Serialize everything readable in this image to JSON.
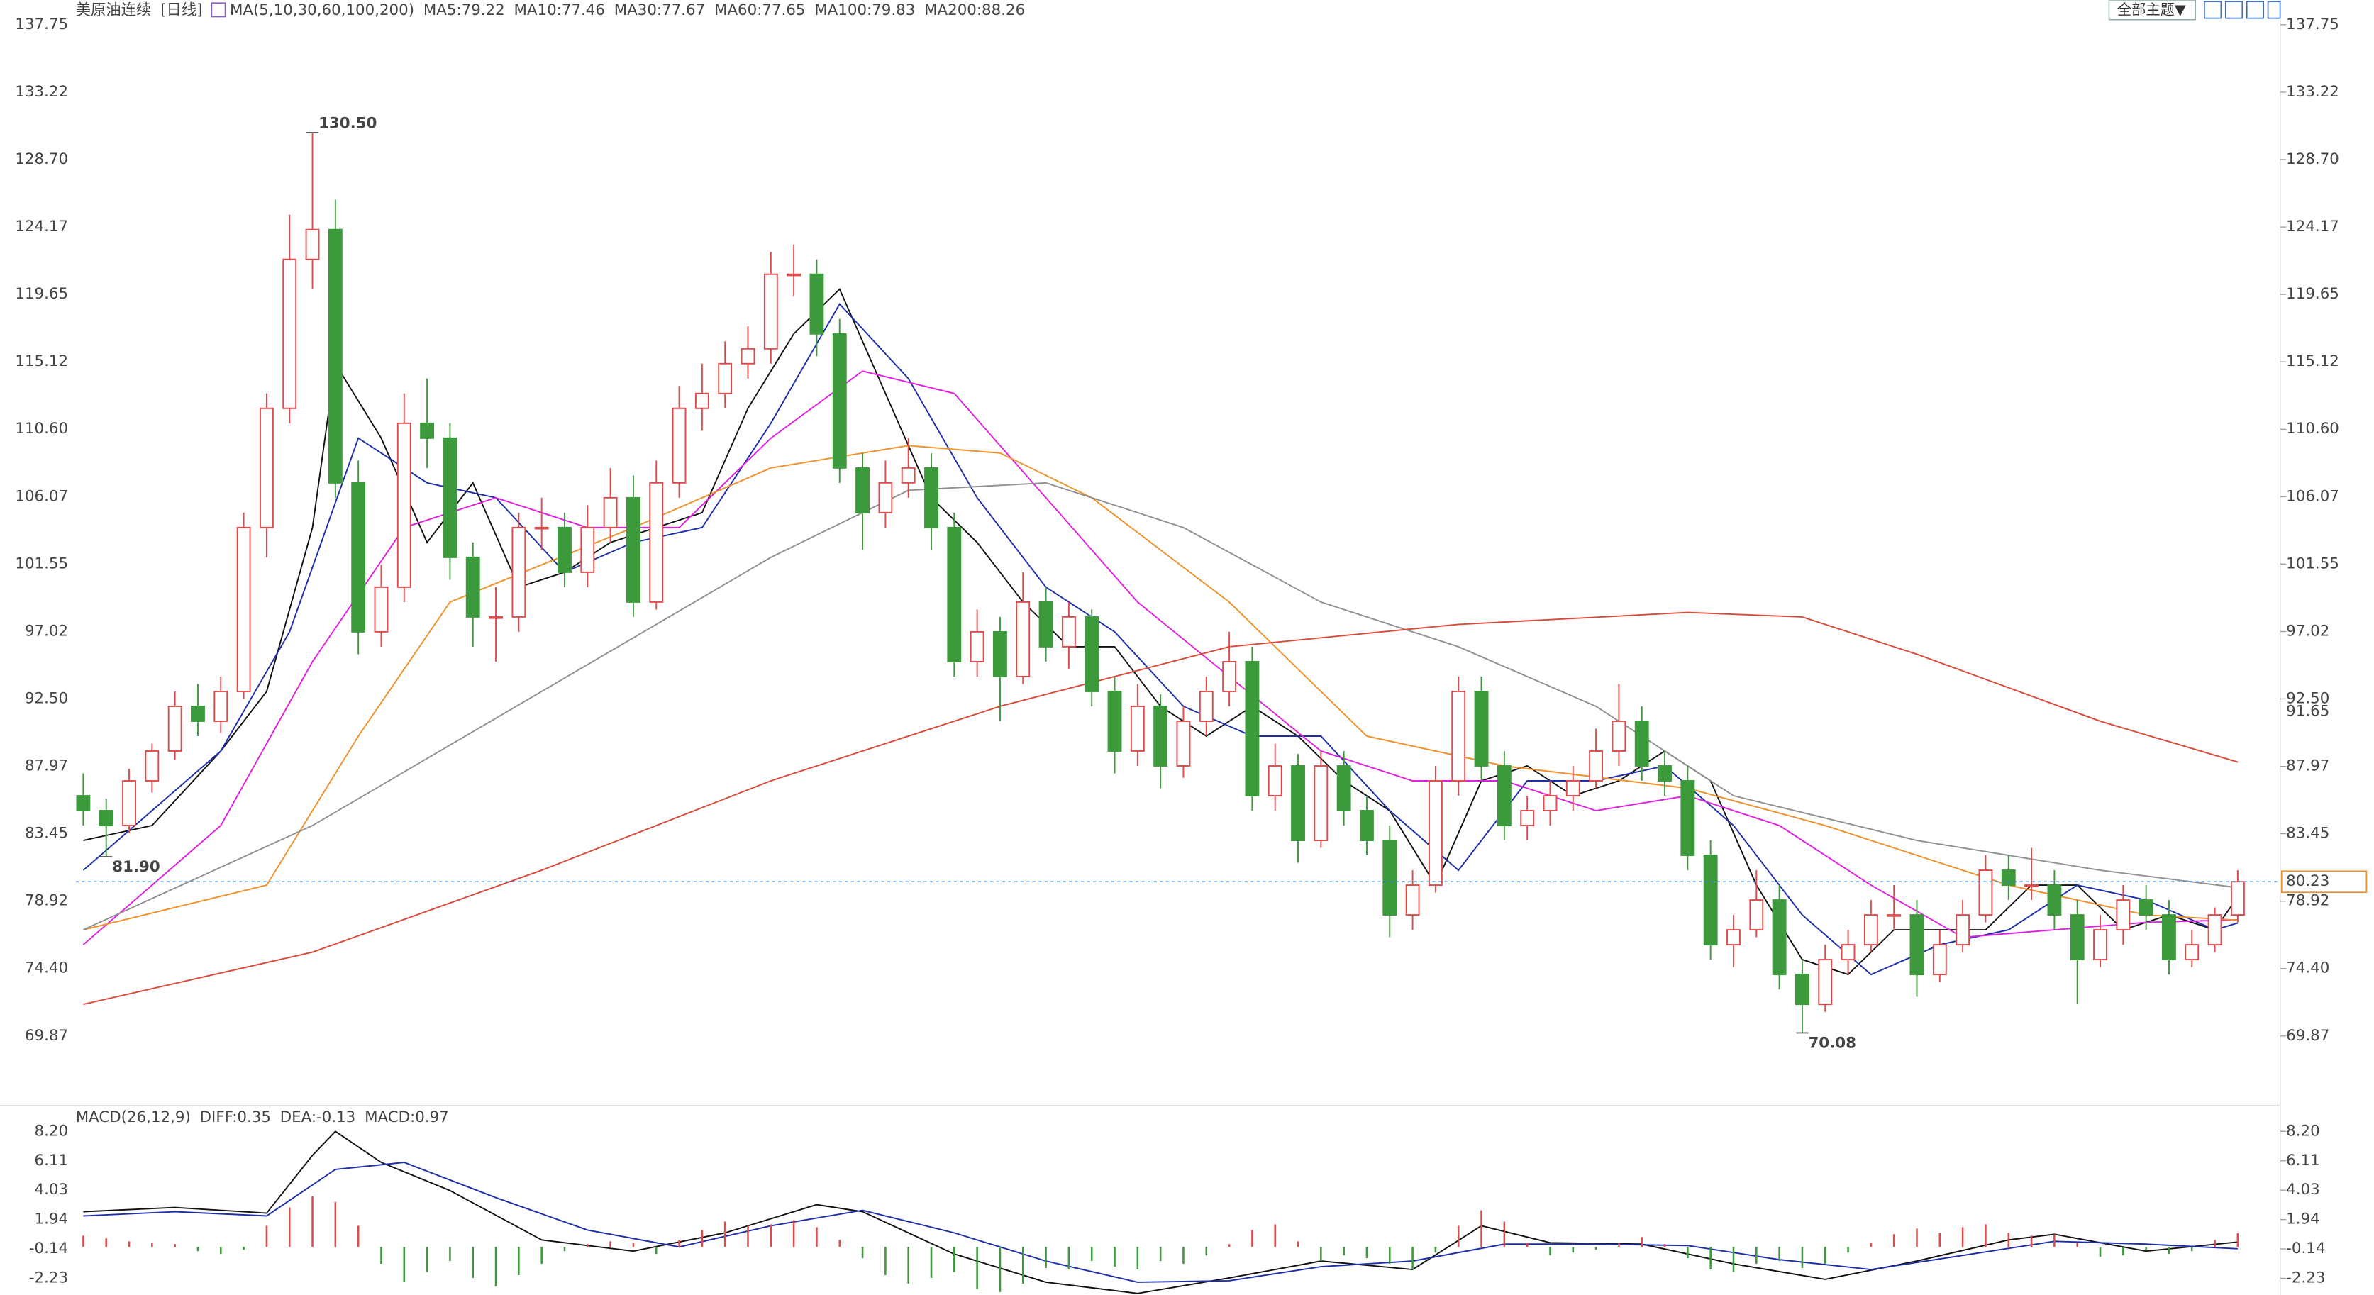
{
  "chart_data": [
    {
      "type": "candlestick",
      "title": "美原油连续",
      "period": "[日线]",
      "indicator": "MA(5,10,30,60,100,200)",
      "up_color": "#e04b4b",
      "down_color": "#3c9a3c",
      "open": [
        86,
        85,
        84,
        87,
        89,
        92,
        91,
        93,
        104,
        112,
        122,
        124,
        107,
        97,
        100,
        111,
        110,
        102,
        98,
        98,
        104,
        104,
        101,
        104,
        106,
        99,
        107,
        112,
        113,
        115,
        116,
        121,
        121,
        117,
        108,
        105,
        107,
        108,
        104,
        95,
        97,
        94,
        99,
        96,
        98,
        93,
        89,
        92,
        88,
        91,
        93,
        95,
        86,
        88,
        83,
        88,
        85,
        83,
        78,
        80,
        87,
        93,
        88,
        84,
        85,
        86,
        87,
        89,
        91,
        88,
        87,
        82,
        76,
        77,
        79,
        74,
        72,
        75,
        76,
        78,
        78,
        74,
        76,
        78,
        81,
        80,
        80,
        78,
        75,
        77,
        79,
        78,
        75,
        76,
        78
      ],
      "high": [
        87.5,
        85.8,
        87.8,
        89.5,
        93,
        93.5,
        94,
        105,
        113,
        125,
        130.5,
        126,
        108.5,
        101.5,
        113,
        114,
        111,
        103,
        100,
        105,
        106,
        105,
        105.5,
        108,
        107.5,
        108.5,
        113.5,
        115,
        116.5,
        117.5,
        122.5,
        123,
        122,
        118,
        109,
        108.5,
        110,
        109,
        105,
        98.5,
        98,
        101,
        100,
        99,
        98.5,
        94,
        93.5,
        92.8,
        92,
        94,
        97,
        96,
        89.5,
        88.8,
        89,
        89,
        86,
        84,
        81,
        88,
        94,
        94,
        89,
        86,
        87,
        88,
        90.5,
        93.5,
        92,
        89,
        88,
        83,
        78,
        81,
        80,
        75,
        76,
        77,
        79,
        80,
        79,
        77,
        79,
        82,
        82,
        82.5,
        81,
        79,
        78,
        80,
        80,
        79,
        77,
        78.5,
        81
      ],
      "low": [
        84,
        81.9,
        83.5,
        86.2,
        88.4,
        90,
        90.2,
        92.5,
        102,
        111,
        120,
        106,
        95.5,
        96,
        99,
        108,
        100.5,
        96,
        95,
        97,
        102.5,
        100,
        100,
        103,
        98,
        98.5,
        106,
        110.5,
        112,
        114,
        115,
        119.5,
        115.5,
        107,
        102.5,
        104,
        106,
        102.5,
        94,
        94,
        91,
        93.5,
        95,
        94.5,
        92,
        87.5,
        88,
        86.5,
        87.2,
        90,
        92,
        85,
        85,
        81.5,
        82.5,
        84,
        82,
        76.5,
        77,
        79.5,
        86,
        87,
        83,
        83,
        84,
        85,
        86.5,
        88,
        87,
        86,
        81,
        75,
        74.5,
        76.5,
        73,
        70.08,
        71.5,
        74,
        75.5,
        77,
        72.5,
        73.5,
        75.5,
        77.5,
        79,
        79,
        77,
        72,
        74.5,
        76,
        77,
        74,
        74.5,
        75.5,
        77.5
      ],
      "close": [
        85,
        84,
        87,
        89,
        92,
        91,
        93,
        104,
        112,
        122,
        124,
        107,
        97,
        100,
        111,
        110,
        102,
        98,
        98,
        104,
        104,
        101,
        104,
        106,
        99,
        107,
        112,
        113,
        115,
        116,
        121,
        121,
        117,
        108,
        105,
        107,
        108,
        104,
        95,
        97,
        94,
        99,
        96,
        98,
        93,
        89,
        92,
        88,
        91,
        93,
        95,
        86,
        88,
        83,
        88,
        85,
        83,
        78,
        80,
        87,
        93,
        88,
        84,
        85,
        86,
        87,
        89,
        91,
        88,
        87,
        82,
        76,
        77,
        79,
        74,
        72,
        75,
        76,
        78,
        78,
        74,
        76,
        78,
        81,
        80,
        80,
        78,
        75,
        77,
        79,
        78,
        75,
        76,
        78,
        80.23
      ],
      "series": [
        {
          "name": "MA5:79.22",
          "color": "#111111",
          "x": [
            0,
            3,
            6,
            8,
            10,
            11,
            13,
            15,
            17,
            19,
            21,
            23,
            25,
            27,
            29,
            31,
            33,
            35,
            37,
            39,
            41,
            43,
            45,
            47,
            49,
            51,
            53,
            55,
            57,
            59,
            61,
            63,
            65,
            67,
            69,
            71,
            73,
            75,
            77,
            79,
            81,
            83,
            85,
            87,
            89,
            91,
            93,
            94
          ],
          "values": [
            83,
            84,
            89,
            93,
            104,
            115,
            110,
            103,
            107,
            100,
            101,
            103,
            104,
            105,
            112,
            117,
            120,
            113,
            106,
            103,
            99,
            96,
            96,
            92,
            90,
            92,
            90,
            87,
            85,
            80,
            87,
            88,
            86,
            87,
            89,
            87,
            80,
            75,
            74,
            77,
            77,
            77,
            80,
            80,
            77,
            78,
            77,
            79.22
          ]
        },
        {
          "name": "MA10:77.46",
          "color": "#1c2fa8",
          "x": [
            0,
            3,
            6,
            9,
            12,
            15,
            18,
            21,
            24,
            27,
            30,
            33,
            36,
            39,
            42,
            45,
            48,
            51,
            54,
            57,
            60,
            63,
            66,
            69,
            72,
            75,
            78,
            81,
            84,
            87,
            90,
            93,
            94
          ],
          "values": [
            81,
            85,
            89,
            97,
            110,
            107,
            106,
            101,
            103,
            104,
            111,
            119,
            114,
            106,
            100,
            97,
            92,
            90,
            90,
            85,
            81,
            87,
            87,
            88,
            84,
            78,
            74,
            76,
            77,
            80,
            79,
            77,
            77.46
          ]
        },
        {
          "name": "MA30:77.67",
          "color": "#e020e0",
          "x": [
            0,
            6,
            10,
            14,
            18,
            22,
            26,
            30,
            34,
            38,
            42,
            46,
            50,
            54,
            58,
            62,
            66,
            70,
            74,
            78,
            82,
            86,
            90,
            94
          ],
          "values": [
            76,
            84,
            95,
            104,
            106,
            104,
            104,
            110,
            114.5,
            113,
            106,
            99,
            94,
            89,
            87,
            87,
            85,
            86,
            84,
            80,
            76.5,
            77,
            77.5,
            77.67
          ]
        },
        {
          "name": "MA60:77.65",
          "color": "#f0902a",
          "x": [
            0,
            8,
            12,
            16,
            24,
            30,
            36,
            40,
            44,
            50,
            56,
            62,
            70,
            76,
            84,
            90,
            94
          ],
          "values": [
            77,
            80,
            90,
            99,
            104,
            108,
            109.5,
            109,
            106,
            99,
            90,
            88,
            86.5,
            84,
            80,
            78,
            77.65
          ]
        },
        {
          "name": "MA100:79.83",
          "color": "#909090",
          "x": [
            0,
            10,
            20,
            30,
            36,
            42,
            48,
            54,
            60,
            66,
            72,
            80,
            88,
            94
          ],
          "values": [
            77,
            84,
            93,
            102,
            106.5,
            107,
            104,
            99,
            96,
            92,
            86,
            83,
            81,
            79.83
          ]
        },
        {
          "name": "MA200:88.26",
          "color": "#d84a3a",
          "x": [
            0,
            10,
            20,
            30,
            40,
            50,
            60,
            70,
            75,
            80,
            88,
            94
          ],
          "values": [
            72,
            75.5,
            81,
            87,
            92,
            96,
            97.5,
            98.3,
            98,
            95.5,
            91,
            88.26
          ]
        }
      ],
      "annotations": [
        {
          "label": "130.50",
          "value": 130.5,
          "x": 10,
          "color": "#e04b4b"
        },
        {
          "label": "81.90",
          "value": 81.9,
          "x": 1,
          "color": "#3c9a3c"
        },
        {
          "label": "70.08",
          "value": 70.08,
          "x": 75,
          "color": "#3c9a3c"
        }
      ],
      "price_line": {
        "label": "80.23",
        "value": 80.23,
        "color": "#f0902a"
      },
      "marker": {
        "label": "91.65",
        "value": 91.65,
        "color": "#f0902a"
      },
      "ylim": [
        65.4,
        138.9
      ],
      "yticks": [
        137.75,
        133.22,
        {
          "value": 128.7,
          "label": "128.70"
        },
        124.17,
        119.65,
        115.12,
        {
          "value": 110.6,
          "label": "110.60"
        },
        106.07,
        101.55,
        97.02,
        {
          "value": 92.5,
          "label": "92.50"
        },
        87.97,
        83.45,
        78.92,
        {
          "value": 74.4,
          "label": "74.40"
        },
        69.87
      ],
      "toolbar": "全部主题▼"
    },
    {
      "type": "macd",
      "title": "MACD(26,12,9)",
      "up_color": "#e04b4b",
      "down_color": "#3c9a3c",
      "series": [
        {
          "name": "DIFF:0.35",
          "color": "#111111",
          "x": [
            0,
            4,
            8,
            10,
            11,
            13,
            16,
            20,
            24,
            28,
            32,
            34,
            38,
            42,
            46,
            50,
            54,
            58,
            61,
            64,
            68,
            72,
            76,
            80,
            84,
            86,
            90,
            94
          ],
          "values": [
            2.5,
            2.8,
            2.4,
            6.5,
            8.2,
            6.0,
            4.0,
            0.5,
            -0.3,
            1.0,
            3.0,
            2.5,
            -0.5,
            -2.5,
            -3.3,
            -2.2,
            -1.0,
            -1.6,
            1.5,
            0.3,
            0.2,
            -1.2,
            -2.3,
            -1.0,
            0.5,
            0.9,
            -0.3,
            0.35
          ]
        },
        {
          "name": "DEA:-0.13",
          "color": "#1c2fa8",
          "x": [
            0,
            4,
            8,
            11,
            14,
            18,
            22,
            26,
            30,
            34,
            38,
            42,
            46,
            50,
            54,
            58,
            62,
            66,
            70,
            74,
            78,
            82,
            86,
            90,
            94
          ],
          "values": [
            2.2,
            2.5,
            2.2,
            5.5,
            6.0,
            3.5,
            1.2,
            0.0,
            1.5,
            2.6,
            1.0,
            -1.0,
            -2.5,
            -2.4,
            -1.4,
            -1.0,
            0.2,
            0.2,
            0.1,
            -0.9,
            -1.6,
            -0.6,
            0.4,
            0.2,
            -0.13
          ]
        },
        {
          "name": "MACD:0.97",
          "color": "#e020e0",
          "values": [
            0.8,
            0.6,
            0.4,
            0.3,
            0.2,
            -0.3,
            -0.5,
            -0.2,
            1.5,
            2.8,
            3.6,
            3.2,
            1.5,
            -1.2,
            -2.5,
            -1.8,
            -1.0,
            -2.2,
            -2.8,
            -2.0,
            -1.2,
            -0.3,
            0.2,
            0.4,
            0.3,
            -0.5,
            0.5,
            1.2,
            1.8,
            1.5,
            1.6,
            1.9,
            1.4,
            0.5,
            -0.8,
            -2.0,
            -2.6,
            -2.2,
            -1.8,
            -3.0,
            -3.2,
            -2.6,
            -1.5,
            -1.6,
            -1.0,
            -1.4,
            -1.6,
            -1.0,
            -1.2,
            -0.6,
            0.2,
            1.2,
            1.6,
            0.4,
            -1.0,
            -0.6,
            -0.8,
            -1.2,
            -1.6,
            -0.4,
            1.5,
            2.6,
            1.8,
            0.3,
            -0.6,
            -0.4,
            -0.2,
            0.3,
            0.7,
            0.2,
            -0.8,
            -1.6,
            -1.8,
            -1.2,
            -1.0,
            -1.5,
            -1.2,
            -0.4,
            0.3,
            0.9,
            1.3,
            1.0,
            1.4,
            1.6,
            1.0,
            0.8,
            0.9,
            0.3,
            -0.7,
            -0.6,
            -0.2,
            -0.5,
            -0.3,
            0.5,
            0.97
          ]
        }
      ],
      "ylim": [
        -3.41,
        9.81
      ],
      "yticks": [
        {
          "value": 8.2,
          "label": "8.20"
        },
        6.11,
        4.03,
        1.94,
        -0.14,
        -2.23
      ]
    }
  ]
}
